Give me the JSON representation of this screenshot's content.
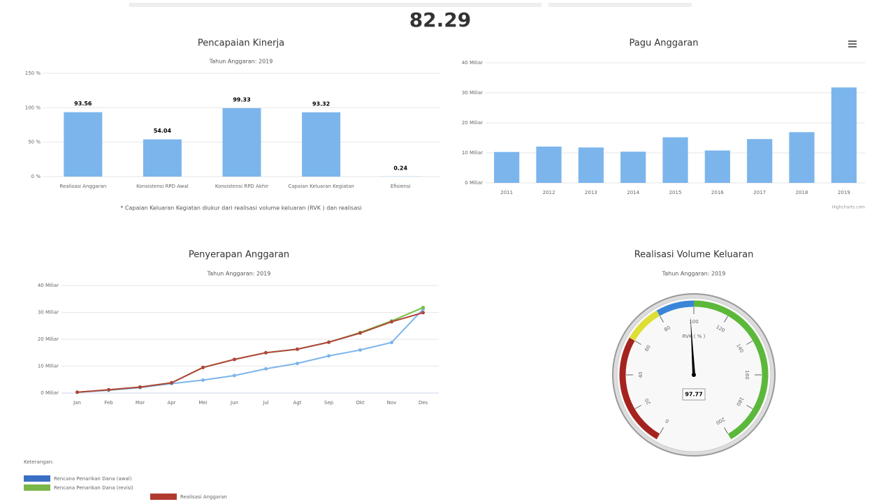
{
  "score": "82.29",
  "chart_data": [
    {
      "type": "bar",
      "title": "Pencapaian Kinerja",
      "subtitle": "Tahun Anggaran: 2019",
      "categories": [
        "Realisasi Anggaran",
        "Konsistensi RPD Awal",
        "Konsistensi RPD Akhir",
        "Capaian Keluaran Kegiatan",
        "Efisiensi"
      ],
      "values": [
        93.56,
        54.04,
        99.33,
        93.32,
        0.24
      ],
      "color": "#7cb5ec",
      "ylim": [
        0,
        150
      ],
      "yticks": [
        {
          "value": 0,
          "label": "0 %"
        },
        {
          "value": 50,
          "label": "50 %"
        },
        {
          "value": 100,
          "label": "100 %"
        },
        {
          "value": 150,
          "label": "150 %"
        }
      ],
      "grid": true,
      "note": "* Capaian Keluaran Kegiatan diukur dari realisasi volume keluaran (RVK ) dan realisasi"
    },
    {
      "type": "bar",
      "title": "Pagu Anggaran",
      "categories": [
        "2011",
        "2012",
        "2013",
        "2014",
        "2015",
        "2016",
        "2017",
        "2018",
        "2019"
      ],
      "values": [
        10.3,
        12.1,
        11.8,
        10.4,
        15.2,
        10.8,
        14.6,
        16.9,
        31.8
      ],
      "color": "#7cb5ec",
      "ylim": [
        0,
        40
      ],
      "yticks": [
        {
          "value": 0,
          "label": "0 Miliar"
        },
        {
          "value": 10,
          "label": "10 Miliar"
        },
        {
          "value": 20,
          "label": "20 Miliar"
        },
        {
          "value": 30,
          "label": "30 Miliar"
        },
        {
          "value": 40,
          "label": "40 Miliar"
        }
      ],
      "grid": true,
      "credits": "Highcharts.com"
    },
    {
      "type": "line",
      "title": "Penyerapan Anggaran",
      "subtitle": "Tahun Anggaran: 2019",
      "categories": [
        "Jan",
        "Feb",
        "Mar",
        "Apr",
        "Mei",
        "Jun",
        "Jul",
        "Agt",
        "Sep",
        "Okt",
        "Nov",
        "Des"
      ],
      "series": [
        {
          "name": "Rencana Penarikan Dana (awal)",
          "color": "#7cb5ec",
          "legend_color": "#3a6fc4",
          "values": [
            0.3,
            1.0,
            2.0,
            3.5,
            4.8,
            6.5,
            9.0,
            11.0,
            13.8,
            16.0,
            18.8,
            31.2
          ]
        },
        {
          "name": "Rencana Penarikan Dana (revisi)",
          "color": "#74c043",
          "legend_color": "#7ab648",
          "values": [
            0.3,
            1.2,
            2.2,
            3.8,
            9.5,
            12.5,
            15.0,
            16.3,
            18.9,
            22.5,
            26.8,
            31.8
          ]
        },
        {
          "name": "Realisasi Anggaran",
          "color": "#b0453a",
          "legend_color": "#b03a2e",
          "values": [
            0.3,
            1.2,
            2.2,
            3.8,
            9.5,
            12.5,
            15.0,
            16.3,
            18.9,
            22.3,
            26.5,
            29.9
          ]
        }
      ],
      "ylim": [
        0,
        40
      ],
      "yticks": [
        {
          "value": 0,
          "label": "0 Miliar"
        },
        {
          "value": 10,
          "label": "10 Miliar"
        },
        {
          "value": 20,
          "label": "20 Miliar"
        },
        {
          "value": 30,
          "label": "30 Miliar"
        },
        {
          "value": 40,
          "label": "40 Miliar"
        }
      ],
      "grid": true,
      "legend_title": "Keterangan:"
    },
    {
      "type": "gauge",
      "title": "Realisasi Volume Keluaran",
      "subtitle": "Tahun Anggaran: 2019",
      "axis_label": "RVK ( % )",
      "value": 97.77,
      "ylim": [
        0,
        200
      ],
      "yticks": [
        0,
        20,
        40,
        60,
        80,
        100,
        120,
        140,
        160,
        180,
        200
      ],
      "bands": [
        {
          "from": 0,
          "to": 60,
          "color": "#a5231f"
        },
        {
          "from": 60,
          "to": 80,
          "color": "#dede35"
        },
        {
          "from": 80,
          "to": 100,
          "color": "#3a85d8"
        },
        {
          "from": 100,
          "to": 200,
          "color": "#5cb83a"
        }
      ]
    }
  ]
}
